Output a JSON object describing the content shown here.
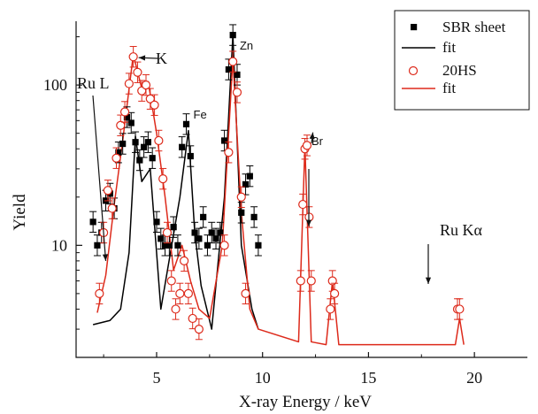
{
  "chart_data": {
    "type": "scatter",
    "title": "",
    "xlabel": "X-ray Energy / keV",
    "ylabel": "Yield",
    "xlim": [
      1.2,
      22.5
    ],
    "ylim": [
      2,
      250
    ],
    "yscale": "log",
    "xticks": [
      5,
      10,
      15,
      20
    ],
    "xtick_labels": [
      "5",
      "10",
      "15",
      "20"
    ],
    "yticks": [
      10,
      100
    ],
    "ytick_labels": [
      "10",
      "100"
    ],
    "grid": false,
    "legend_position": "top-right",
    "colors": {
      "sbr": "#000000",
      "hs": "#dd2a1b"
    },
    "series": [
      {
        "name": "SBR sheet",
        "kind": "markers",
        "marker": "filled-square",
        "color": "#000000",
        "points": [
          [
            2.0,
            14
          ],
          [
            2.2,
            10
          ],
          [
            2.4,
            12
          ],
          [
            2.6,
            19
          ],
          [
            2.8,
            21
          ],
          [
            3.0,
            17
          ],
          [
            3.2,
            38
          ],
          [
            3.4,
            43
          ],
          [
            3.6,
            63
          ],
          [
            3.8,
            58
          ],
          [
            4.0,
            44
          ],
          [
            4.2,
            34
          ],
          [
            4.4,
            41
          ],
          [
            4.6,
            44
          ],
          [
            4.8,
            35
          ],
          [
            5.0,
            14
          ],
          [
            5.2,
            11
          ],
          [
            5.4,
            10
          ],
          [
            5.6,
            10
          ],
          [
            5.8,
            13
          ],
          [
            6.0,
            10
          ],
          [
            6.2,
            41
          ],
          [
            6.4,
            57
          ],
          [
            6.6,
            36
          ],
          [
            6.8,
            12
          ],
          [
            7.0,
            11
          ],
          [
            7.2,
            15
          ],
          [
            7.4,
            10
          ],
          [
            7.6,
            12
          ],
          [
            7.8,
            11
          ],
          [
            8.0,
            12
          ],
          [
            8.2,
            45
          ],
          [
            8.4,
            125
          ],
          [
            8.6,
            205
          ],
          [
            8.8,
            116
          ],
          [
            9.0,
            16
          ],
          [
            9.2,
            24
          ],
          [
            9.4,
            27
          ],
          [
            9.6,
            15
          ],
          [
            9.8,
            10
          ]
        ]
      },
      {
        "name": "fit",
        "kind": "line",
        "color": "#000000",
        "points": [
          [
            2.0,
            3.2
          ],
          [
            2.8,
            3.4
          ],
          [
            3.3,
            4.0
          ],
          [
            3.7,
            9.0
          ],
          [
            4.0,
            48
          ],
          [
            4.3,
            25
          ],
          [
            4.7,
            30
          ],
          [
            5.2,
            4.0
          ],
          [
            6.1,
            20
          ],
          [
            6.5,
            52
          ],
          [
            6.8,
            12
          ],
          [
            7.1,
            5.6
          ],
          [
            7.6,
            3.0
          ],
          [
            8.2,
            20
          ],
          [
            8.6,
            205
          ],
          [
            9.0,
            10
          ],
          [
            9.5,
            4.0
          ],
          [
            9.8,
            3.0
          ]
        ]
      },
      {
        "name": "20HS",
        "kind": "markers",
        "marker": "open-circle",
        "color": "#dd2a1b",
        "points": [
          [
            2.3,
            5
          ],
          [
            2.5,
            12
          ],
          [
            2.7,
            22
          ],
          [
            2.9,
            17
          ],
          [
            3.1,
            35
          ],
          [
            3.3,
            56
          ],
          [
            3.5,
            68
          ],
          [
            3.7,
            102
          ],
          [
            3.9,
            150
          ],
          [
            4.1,
            120
          ],
          [
            4.3,
            92
          ],
          [
            4.5,
            100
          ],
          [
            4.7,
            82
          ],
          [
            4.9,
            75
          ],
          [
            5.1,
            45
          ],
          [
            5.3,
            26
          ],
          [
            5.5,
            12
          ],
          [
            5.7,
            6
          ],
          [
            5.9,
            4
          ],
          [
            6.1,
            5
          ],
          [
            6.3,
            8
          ],
          [
            6.5,
            5
          ],
          [
            6.7,
            3.5
          ],
          [
            7.0,
            3
          ],
          [
            8.2,
            10
          ],
          [
            8.4,
            38
          ],
          [
            8.6,
            140
          ],
          [
            8.8,
            90
          ],
          [
            9.0,
            20
          ],
          [
            9.2,
            5
          ],
          [
            11.8,
            6
          ],
          [
            11.9,
            18
          ],
          [
            12.0,
            40
          ],
          [
            12.1,
            42
          ],
          [
            12.2,
            15
          ],
          [
            12.3,
            6
          ],
          [
            13.2,
            4
          ],
          [
            13.3,
            6
          ],
          [
            13.4,
            5
          ],
          [
            19.2,
            4
          ],
          [
            19.3,
            4
          ]
        ]
      },
      {
        "name": "fit",
        "kind": "line",
        "color": "#dd2a1b",
        "points": [
          [
            2.2,
            3.8
          ],
          [
            2.6,
            6.5
          ],
          [
            3.0,
            18
          ],
          [
            3.4,
            45
          ],
          [
            3.9,
            155
          ],
          [
            4.3,
            95
          ],
          [
            4.6,
            105
          ],
          [
            5.0,
            50
          ],
          [
            5.4,
            20
          ],
          [
            5.8,
            7
          ],
          [
            6.2,
            10
          ],
          [
            6.6,
            6
          ],
          [
            7.0,
            4
          ],
          [
            7.5,
            3.5
          ],
          [
            8.1,
            10
          ],
          [
            8.6,
            145
          ],
          [
            9.0,
            16
          ],
          [
            9.4,
            4
          ],
          [
            9.8,
            3
          ],
          [
            11.7,
            2.5
          ],
          [
            12.0,
            42
          ],
          [
            12.3,
            2.5
          ],
          [
            13.0,
            2.4
          ],
          [
            13.3,
            6
          ],
          [
            13.6,
            2.4
          ],
          [
            19.1,
            2.4
          ],
          [
            19.3,
            3.5
          ],
          [
            19.5,
            2.4
          ]
        ]
      }
    ],
    "annotations": [
      {
        "text": "Ru L",
        "x": 2.6,
        "y": 8.0
      },
      {
        "text": "K",
        "x": 3.9,
        "y": 150
      },
      {
        "text": "Zn",
        "x": 8.8,
        "y": 230
      },
      {
        "text": "Fe",
        "x": 6.4,
        "y": 82
      },
      {
        "text": "Br",
        "x": 12.0,
        "y": 50
      },
      {
        "text": "Ru Kα",
        "x": 19.3,
        "y": 10
      }
    ]
  }
}
